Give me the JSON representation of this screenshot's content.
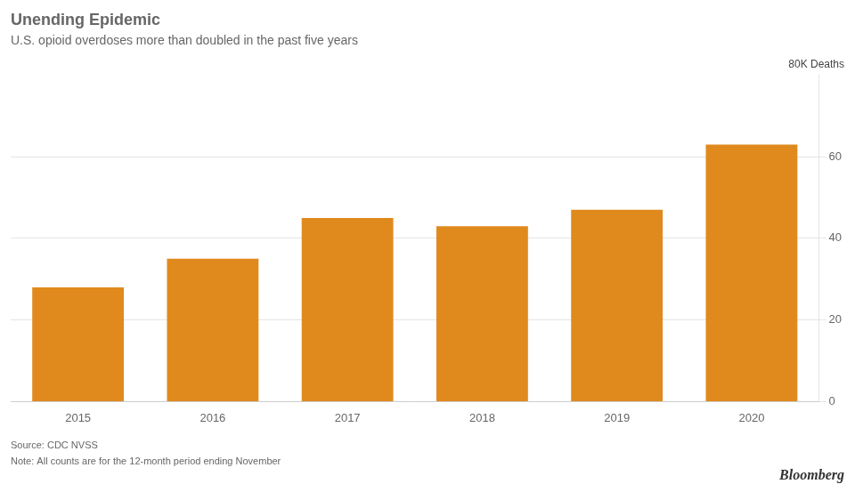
{
  "chart_data": {
    "type": "bar",
    "title": "Unending Epidemic",
    "subtitle": "U.S. opioid overdoses more than doubled in the past five years",
    "categories": [
      "2015",
      "2016",
      "2017",
      "2018",
      "2019",
      "2020"
    ],
    "values": [
      28,
      35,
      45,
      43,
      47,
      63
    ],
    "color": "#E08A1E",
    "ylim": [
      0,
      80
    ],
    "yticks": [
      0,
      20,
      40,
      60
    ],
    "grid": true,
    "annotations": [
      "80K Deaths"
    ],
    "source": "Source: CDC NVSS",
    "note": "Note: All counts are for the 12-month period ending November",
    "credit": "Bloomberg"
  }
}
